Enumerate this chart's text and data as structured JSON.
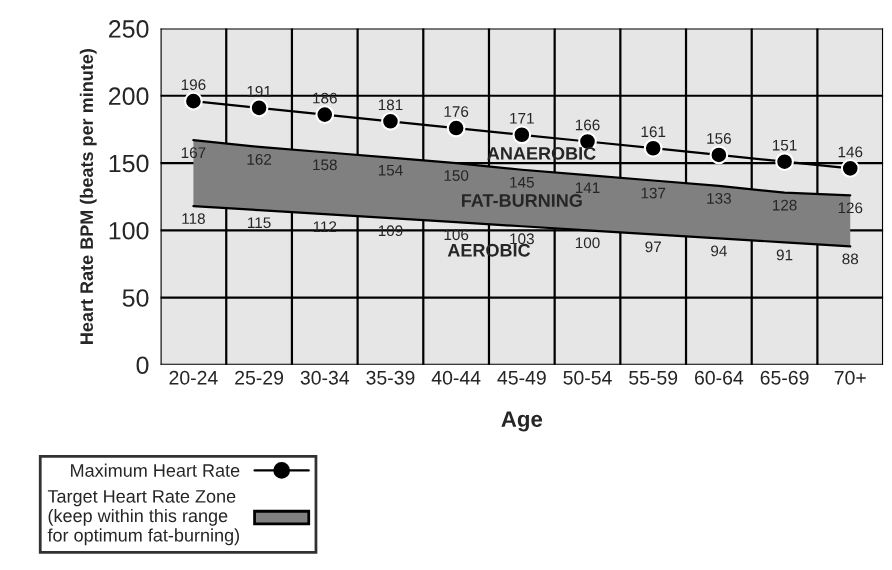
{
  "chart_data": {
    "type": "line",
    "xlabel": "Age",
    "ylabel": "Heart Rate BPM (beats per minute)",
    "categories": [
      "20-24",
      "25-29",
      "30-34",
      "35-39",
      "40-44",
      "45-49",
      "50-54",
      "55-59",
      "60-64",
      "65-69",
      "70+"
    ],
    "series": [
      {
        "name": "Maximum Heart Rate",
        "color": "#000000",
        "marker": "circle",
        "values": [
          196,
          191,
          186,
          181,
          176,
          171,
          166,
          161,
          156,
          151,
          146
        ]
      },
      {
        "name": "Target Heart Rate Zone\n(keep within this range\nfor optimum fat-burning)",
        "type": "area",
        "color": "#808080",
        "values": [
          167,
          162,
          158,
          154,
          150,
          145,
          141,
          137,
          133,
          128,
          126
        ]
      },
      {
        "color": "#000000",
        "values": [
          118,
          115,
          112,
          109,
          106,
          103,
          100,
          97,
          94,
          91,
          88
        ]
      }
    ],
    "ylim": [
      0,
      250
    ],
    "yticks": [
      0,
      50,
      100,
      150,
      200,
      250
    ],
    "grid": true,
    "legend": "bottom left",
    "data_labels": true,
    "annotations": [
      "ANAEROBIC",
      "FAT-BURNING",
      "AEROBIC"
    ]
  }
}
